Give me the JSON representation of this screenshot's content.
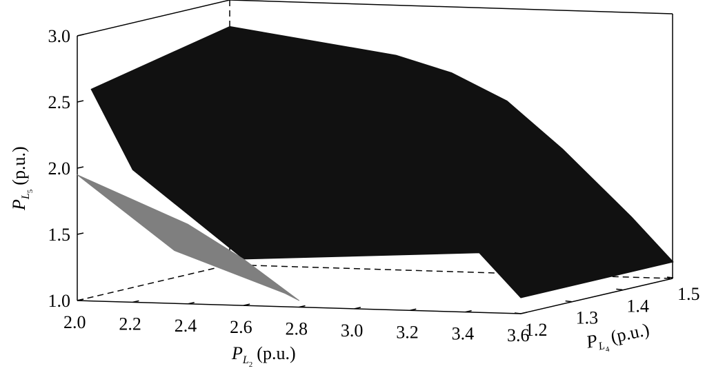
{
  "chart_data": {
    "type": "surface3d",
    "title": "",
    "x_axis": {
      "var": "P",
      "sub": "L",
      "subsub": "2",
      "unit": "(p.u.)",
      "range": [
        2.0,
        3.6
      ],
      "ticks": [
        "2.0",
        "2.2",
        "2.4",
        "2.6",
        "2.8",
        "3.0",
        "3.2",
        "3.4",
        "3.6"
      ]
    },
    "y_axis": {
      "var": "P",
      "sub": "L",
      "subsub": "4",
      "unit": "(p.u.)",
      "range": [
        1.2,
        1.5
      ],
      "ticks": [
        "1.2",
        "1.3",
        "1.4",
        "1.5"
      ]
    },
    "z_axis": {
      "var": "P",
      "sub": "L",
      "subsub": "5",
      "unit": "(p.u.)",
      "range": [
        1.0,
        3.0
      ],
      "ticks": [
        "1.0",
        "1.5",
        "2.0",
        "2.5",
        "3.0"
      ]
    },
    "grid": false,
    "surfaces": [
      {
        "color": "#111111",
        "boundary_xyz": [
          [
            2.0,
            1.5,
            2.8
          ],
          [
            2.6,
            1.5,
            2.62
          ],
          [
            2.8,
            1.5,
            2.5
          ],
          [
            3.0,
            1.5,
            2.3
          ],
          [
            3.2,
            1.5,
            1.95
          ],
          [
            3.45,
            1.5,
            1.45
          ],
          [
            3.6,
            1.5,
            1.12
          ],
          [
            3.6,
            1.2,
            1.12
          ],
          [
            3.45,
            1.2,
            1.45
          ],
          [
            2.6,
            1.2,
            1.35
          ],
          [
            2.2,
            1.2,
            2.0
          ],
          [
            2.05,
            1.2,
            2.6
          ]
        ]
      },
      {
        "color": "#7f7f7f",
        "boundary_xyz": [
          [
            2.0,
            1.2,
            1.95
          ],
          [
            2.4,
            1.2,
            1.6
          ],
          [
            2.6,
            1.2,
            1.35
          ],
          [
            2.8,
            1.2,
            1.05
          ],
          [
            2.75,
            1.2,
            1.1
          ],
          [
            2.55,
            1.2,
            1.25
          ],
          [
            2.35,
            1.2,
            1.4
          ]
        ]
      }
    ]
  }
}
